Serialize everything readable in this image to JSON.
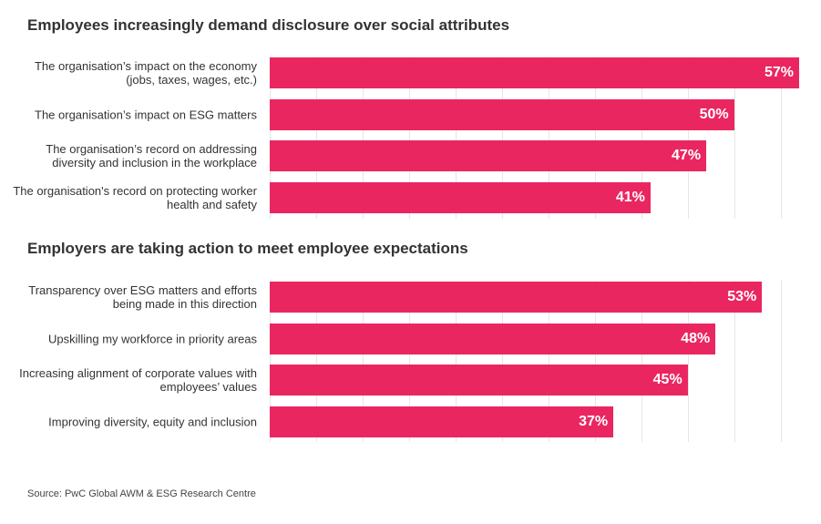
{
  "chart_data": [
    {
      "type": "bar",
      "orientation": "horizontal",
      "title": "Employees increasingly demand disclosure over social attributes",
      "categories": [
        "The organisation’s impact on the economy (jobs, taxes, wages, etc.)",
        "The organisation’s impact on ESG matters",
        "The organisation’s record on addressing diversity and inclusion in the workplace",
        "The organisation's record on protecting worker health and safety"
      ],
      "values": [
        57,
        50,
        47,
        41
      ],
      "value_labels": [
        "57%",
        "50%",
        "47%",
        "41%"
      ],
      "color": "#ea2660",
      "xlim": [
        0,
        57
      ],
      "xticks": [
        0,
        5,
        10,
        15,
        20,
        25,
        30,
        35,
        40,
        45,
        50,
        55
      ],
      "grid": true
    },
    {
      "type": "bar",
      "orientation": "horizontal",
      "title": "Employers are taking action to meet employee expectations",
      "categories": [
        "Transparency over ESG matters and efforts being made in this direction",
        "Upskilling my workforce in priority areas",
        "Increasing alignment of corporate values with employees’ values",
        "Improving diversity, equity and inclusion"
      ],
      "values": [
        53,
        48,
        45,
        37
      ],
      "value_labels": [
        "53%",
        "48%",
        "45%",
        "37%"
      ],
      "color": "#ea2660",
      "xlim": [
        0,
        57
      ],
      "xticks": [
        0,
        5,
        10,
        15,
        20,
        25,
        30,
        35,
        40,
        45,
        50,
        55
      ],
      "grid": true
    }
  ],
  "source": "Source: PwC Global AWM & ESG Research Centre"
}
